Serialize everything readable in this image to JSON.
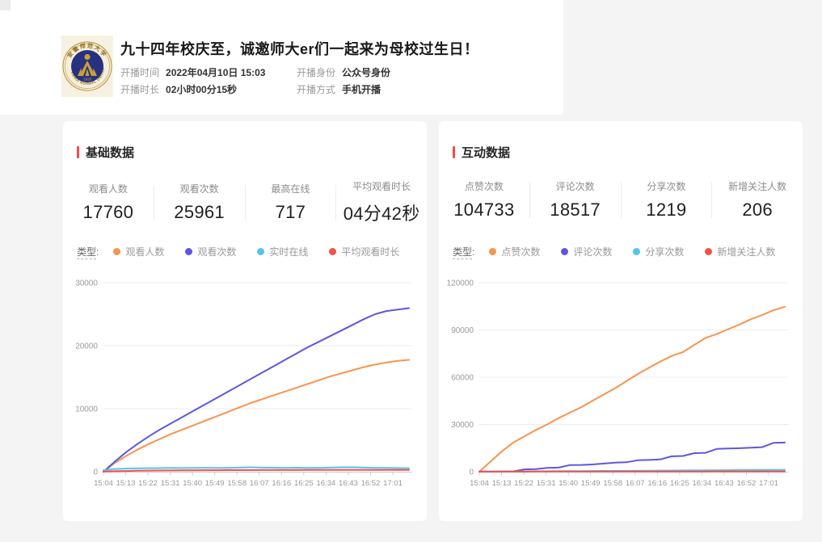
{
  "theme": {
    "accent": "#f14c4c",
    "page_bg": "#f4f4f5"
  },
  "header": {
    "title": "九十四年校庆至，诚邀师大er们一起来为母校过生日！",
    "logo": "anhui-normal-university-seal",
    "logo_year": "1928",
    "logo_bottom_text": "ANHUI NORMAL UNIVERSITY",
    "meta": [
      {
        "label": "开播时间",
        "value": "2022年04月10日 15:03"
      },
      {
        "label": "开播身份",
        "value": "公众号身份"
      },
      {
        "label": "开播时长",
        "value": "02小时00分15秒"
      },
      {
        "label": "开播方式",
        "value": "手机开播"
      }
    ]
  },
  "cards": [
    {
      "title": "基础数据",
      "legend_label": "类型",
      "stats": [
        {
          "label": "观看人数",
          "value": "17760"
        },
        {
          "label": "观看次数",
          "value": "25961"
        },
        {
          "label": "最高在线",
          "value": "717"
        },
        {
          "label": "平均观看时长",
          "value": "04分42秒"
        }
      ],
      "legend": [
        {
          "name": "观看人数",
          "color": "#f7944d"
        },
        {
          "name": "观看次数",
          "color": "#5d57e0"
        },
        {
          "name": "实时在线",
          "color": "#54c3f1"
        },
        {
          "name": "平均观看时长",
          "color": "#f4504c"
        }
      ]
    },
    {
      "title": "互动数据",
      "legend_label": "类型",
      "stats": [
        {
          "label": "点赞次数",
          "value": "104733"
        },
        {
          "label": "评论次数",
          "value": "18517"
        },
        {
          "label": "分享次数",
          "value": "1219"
        },
        {
          "label": "新增关注人数",
          "value": "206"
        }
      ],
      "legend": [
        {
          "name": "点赞次数",
          "color": "#f7944d"
        },
        {
          "name": "评论次数",
          "color": "#5d57e0"
        },
        {
          "name": "分享次数",
          "color": "#54c3f1"
        },
        {
          "name": "新增关注人数",
          "color": "#f4504c"
        }
      ]
    }
  ],
  "chart_data": [
    {
      "type": "line",
      "title": "基础数据",
      "xlabel": "",
      "ylabel": "",
      "ylim": [
        0,
        30000
      ],
      "yticks": [
        0,
        10000,
        20000,
        30000
      ],
      "grid": true,
      "legend_position": "top",
      "x_tick_labels": [
        "15:04",
        "15:13",
        "15:22",
        "15:31",
        "15:40",
        "15:49",
        "15:58",
        "16:07",
        "16:16",
        "16:25",
        "16:34",
        "16:43",
        "16:52",
        "17:01"
      ],
      "series": [
        {
          "name": "观看人数",
          "color": "#f7944d",
          "values": [
            0,
            1400,
            2500,
            3500,
            4400,
            5200,
            6000,
            6700,
            7400,
            8100,
            8800,
            9500,
            10200,
            10900,
            11500,
            12100,
            12700,
            13300,
            13900,
            14500,
            15100,
            15600,
            16100,
            16600,
            17000,
            17350,
            17600,
            17760
          ]
        },
        {
          "name": "观看次数",
          "color": "#5d57e0",
          "values": [
            0,
            1600,
            3100,
            4400,
            5600,
            6700,
            7700,
            8700,
            9700,
            10700,
            11700,
            12700,
            13700,
            14700,
            15700,
            16700,
            17700,
            18700,
            19700,
            20600,
            21500,
            22400,
            23300,
            24200,
            25000,
            25500,
            25750,
            25961
          ]
        },
        {
          "name": "实时在线",
          "color": "#54c3f1",
          "values": [
            250,
            430,
            500,
            540,
            560,
            580,
            600,
            590,
            610,
            630,
            600,
            620,
            650,
            700,
            660,
            640,
            620,
            640,
            600,
            620,
            660,
            700,
            717,
            650,
            620,
            600,
            580,
            560
          ]
        },
        {
          "name": "平均观看时长",
          "color": "#f4504c",
          "values": [
            30,
            80,
            120,
            150,
            175,
            195,
            210,
            222,
            232,
            240,
            247,
            253,
            258,
            262,
            266,
            269,
            272,
            274,
            276,
            278,
            279,
            280,
            281,
            281,
            282,
            282,
            282,
            282
          ]
        }
      ]
    },
    {
      "type": "line",
      "title": "互动数据",
      "xlabel": "",
      "ylabel": "",
      "ylim": [
        0,
        120000
      ],
      "yticks": [
        0,
        30000,
        60000,
        90000,
        120000
      ],
      "grid": true,
      "legend_position": "top",
      "x_tick_labels": [
        "15:04",
        "15:13",
        "15:22",
        "15:31",
        "15:40",
        "15:49",
        "15:58",
        "16:07",
        "16:16",
        "16:25",
        "16:34",
        "16:43",
        "16:52",
        "17:01"
      ],
      "series": [
        {
          "name": "点赞次数",
          "color": "#f7944d",
          "values": [
            0,
            6500,
            13000,
            18500,
            22500,
            26500,
            30000,
            34000,
            37500,
            41000,
            45000,
            49000,
            53000,
            57500,
            62000,
            66000,
            70000,
            73500,
            76000,
            80500,
            85000,
            87500,
            90500,
            93500,
            96800,
            99500,
            102500,
            104733
          ]
        },
        {
          "name": "评论次数",
          "color": "#5d57e0",
          "values": [
            100,
            150,
            200,
            250,
            1500,
            1700,
            2400,
            2600,
            4200,
            4300,
            4600,
            5200,
            5800,
            6000,
            7300,
            7500,
            7800,
            9800,
            10000,
            11800,
            12000,
            14500,
            14700,
            14900,
            15300,
            15600,
            18300,
            18517
          ]
        },
        {
          "name": "分享次数",
          "color": "#54c3f1",
          "values": [
            0,
            50,
            100,
            150,
            200,
            250,
            300,
            340,
            380,
            420,
            460,
            500,
            540,
            580,
            620,
            660,
            700,
            750,
            800,
            850,
            900,
            950,
            1000,
            1060,
            1120,
            1170,
            1200,
            1219
          ]
        },
        {
          "name": "新增关注人数",
          "color": "#f4504c",
          "values": [
            0,
            20,
            40,
            55,
            70,
            82,
            92,
            100,
            108,
            115,
            122,
            128,
            134,
            140,
            146,
            152,
            158,
            163,
            168,
            173,
            178,
            183,
            188,
            192,
            196,
            200,
            203,
            206
          ]
        }
      ]
    }
  ]
}
